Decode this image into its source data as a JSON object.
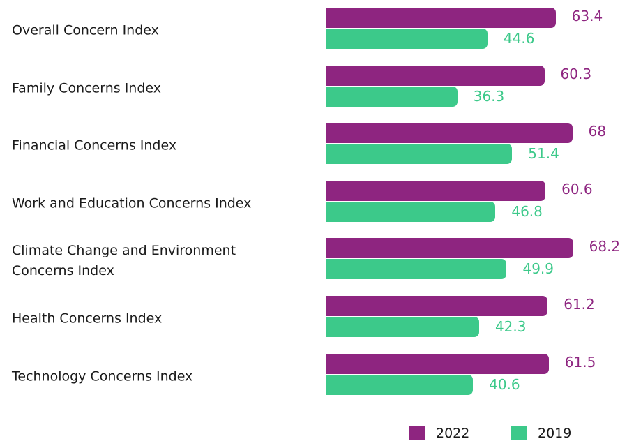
{
  "chart_data": {
    "type": "bar",
    "orientation": "horizontal",
    "categories": [
      "Overall Concern Index",
      "Family Concerns Index",
      "Financial Concerns Index",
      "Work and Education Concerns Index",
      "Climate Change and Environment Concerns Index",
      "Health Concerns Index",
      "Technology Concerns Index"
    ],
    "series": [
      {
        "name": "2022",
        "color": "#8e2580",
        "values": [
          63.4,
          60.3,
          68,
          60.6,
          68.2,
          61.2,
          61.5
        ]
      },
      {
        "name": "2019",
        "color": "#3cc98a",
        "values": [
          44.6,
          36.3,
          51.4,
          46.8,
          49.9,
          42.3,
          40.6
        ]
      }
    ]
  }
}
